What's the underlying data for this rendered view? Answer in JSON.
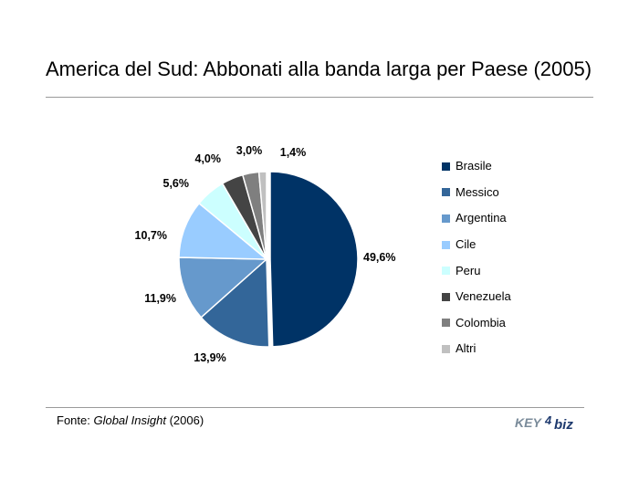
{
  "header": {
    "title": "America del Sud: Abbonati alla banda larga per Paese (2005)"
  },
  "footer": {
    "source_prefix": "Fonte: ",
    "source_name": "Global Insight",
    "source_suffix": " (2006)",
    "logo_text_left": "KEY",
    "logo_text_right": "biz",
    "logo_number": "4"
  },
  "colors": {
    "Brasile": "#003366",
    "Messico": "#336699",
    "Argentina": "#6699cc",
    "Cile": "#99ccff",
    "Peru": "#ccffff",
    "Venezuela": "#444444",
    "Colombia": "#7f7f7f",
    "Altri": "#c0c0c0"
  },
  "chart_data": {
    "type": "pie",
    "title": "America del Sud: Abbonati alla banda larga per Paese (2005)",
    "legend_position": "right",
    "slices": [
      {
        "label": "Brasile",
        "value": 49.6,
        "display": "49,6%"
      },
      {
        "label": "Messico",
        "value": 13.9,
        "display": "13,9%"
      },
      {
        "label": "Argentina",
        "value": 11.9,
        "display": "11,9%"
      },
      {
        "label": "Cile",
        "value": 10.7,
        "display": "10,7%"
      },
      {
        "label": "Peru",
        "value": 5.6,
        "display": "5,6%"
      },
      {
        "label": "Venezuela",
        "value": 4.0,
        "display": "4,0%"
      },
      {
        "label": "Colombia",
        "value": 3.0,
        "display": "3,0%"
      },
      {
        "label": "Altri",
        "value": 1.4,
        "display": "1,4%"
      }
    ]
  }
}
